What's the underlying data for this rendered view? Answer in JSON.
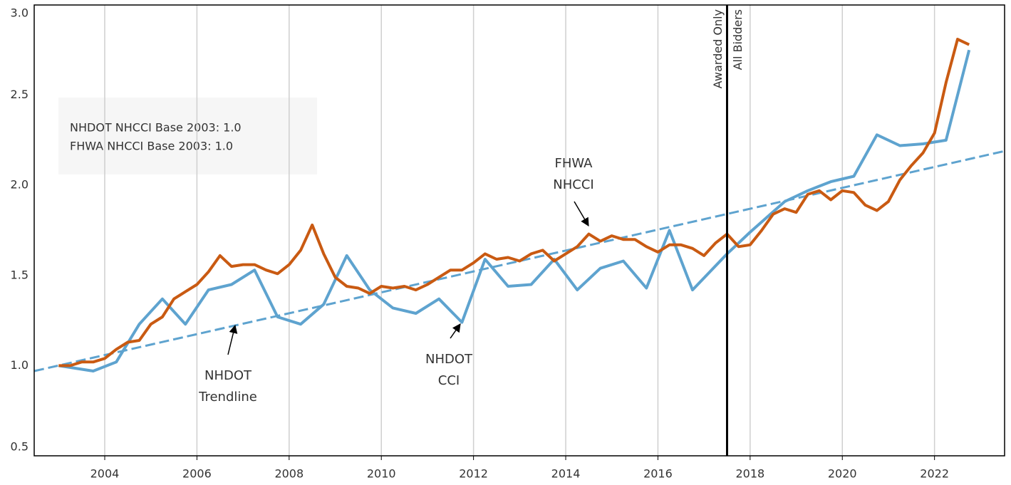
{
  "chart_data": {
    "type": "line",
    "xlim": [
      2002.47,
      2023.52
    ],
    "xticks": [
      2004,
      2006,
      2008,
      2010,
      2012,
      2014,
      2016,
      2018,
      2020,
      2022
    ],
    "ylim": [
      0.5,
      3.0
    ],
    "yticks": [
      {
        "value": 0.5,
        "label": "0.5"
      },
      {
        "value": 1.0,
        "label": "1.0"
      },
      {
        "value": 1.5,
        "label": "1.5"
      },
      {
        "value": 2.0,
        "label": "2.0"
      },
      {
        "value": 2.5,
        "label": "2.5"
      },
      {
        "value": 3.0,
        "label": "3.0"
      }
    ],
    "grid": true,
    "series": [
      {
        "color": "#5ea3cf",
        "dashed": false,
        "x": [
          2003.0,
          2003.75,
          2004.25,
          2004.75,
          2005.25,
          2005.75,
          2006.25,
          2006.75,
          2007.25,
          2007.75,
          2008.25,
          2008.75,
          2009.25,
          2009.75,
          2010.25,
          2010.75,
          2011.25,
          2011.75,
          2012.25,
          2012.75,
          2013.25,
          2013.75,
          2014.25,
          2014.75,
          2015.25,
          2015.75,
          2016.25,
          2016.75,
          2017.5,
          2018.0,
          2018.75,
          2019.25,
          2019.75,
          2020.25,
          2020.75,
          2021.25,
          2021.75,
          2022.25,
          2022.75
        ],
        "values": [
          1.0,
          0.97,
          1.02,
          1.23,
          1.37,
          1.23,
          1.42,
          1.45,
          1.53,
          1.27,
          1.23,
          1.34,
          1.61,
          1.42,
          1.32,
          1.29,
          1.37,
          1.24,
          1.59,
          1.44,
          1.45,
          1.59,
          1.42,
          1.54,
          1.58,
          1.43,
          1.75,
          1.42,
          1.62,
          1.74,
          1.91,
          1.97,
          2.02,
          2.05,
          2.28,
          2.22,
          2.23,
          2.25,
          2.75
        ]
      },
      {
        "color": "#c95a12",
        "dashed": false,
        "x": [
          2003.0,
          2003.25,
          2003.5,
          2003.75,
          2004.0,
          2004.25,
          2004.5,
          2004.75,
          2005.0,
          2005.25,
          2005.5,
          2005.75,
          2006.0,
          2006.25,
          2006.5,
          2006.75,
          2007.0,
          2007.25,
          2007.5,
          2007.75,
          2008.0,
          2008.25,
          2008.5,
          2008.75,
          2009.0,
          2009.25,
          2009.5,
          2009.75,
          2010.0,
          2010.25,
          2010.5,
          2010.75,
          2011.0,
          2011.25,
          2011.5,
          2011.75,
          2012.0,
          2012.25,
          2012.5,
          2012.75,
          2013.0,
          2013.25,
          2013.5,
          2013.75,
          2014.0,
          2014.25,
          2014.5,
          2014.75,
          2015.0,
          2015.25,
          2015.5,
          2015.75,
          2016.0,
          2016.25,
          2016.5,
          2016.75,
          2017.0,
          2017.25,
          2017.5,
          2017.75,
          2018.0,
          2018.25,
          2018.5,
          2018.75,
          2019.0,
          2019.25,
          2019.5,
          2019.75,
          2020.0,
          2020.25,
          2020.5,
          2020.75,
          2021.0,
          2021.25,
          2021.5,
          2021.75,
          2022.0,
          2022.25,
          2022.5,
          2022.75
        ],
        "values": [
          1.0,
          1.0,
          1.02,
          1.02,
          1.04,
          1.09,
          1.13,
          1.14,
          1.23,
          1.27,
          1.37,
          1.41,
          1.45,
          1.52,
          1.61,
          1.55,
          1.56,
          1.56,
          1.53,
          1.51,
          1.56,
          1.64,
          1.78,
          1.62,
          1.49,
          1.44,
          1.43,
          1.4,
          1.44,
          1.43,
          1.44,
          1.42,
          1.45,
          1.49,
          1.53,
          1.53,
          1.57,
          1.62,
          1.59,
          1.6,
          1.58,
          1.62,
          1.64,
          1.58,
          1.62,
          1.66,
          1.73,
          1.69,
          1.72,
          1.7,
          1.7,
          1.66,
          1.63,
          1.67,
          1.67,
          1.65,
          1.61,
          1.68,
          1.73,
          1.66,
          1.67,
          1.75,
          1.84,
          1.87,
          1.85,
          1.95,
          1.97,
          1.92,
          1.97,
          1.96,
          1.89,
          1.86,
          1.91,
          2.03,
          2.11,
          2.18,
          2.29,
          2.57,
          2.81,
          2.78
        ]
      },
      {
        "color": "#5ea3cf",
        "dashed": true,
        "x": [
          2002.47,
          2023.52
        ],
        "values": [
          0.97,
          2.19
        ]
      }
    ],
    "vline": {
      "x": 2017.5,
      "left_label": "Awarded Only",
      "right_label": "All Bidders"
    },
    "note": [
      "NHDOT NHCCI Base 2003: 1.0",
      "FHWA NHCCI Base 2003: 1.0"
    ],
    "annotations": [
      {
        "lines": [
          "FHWA",
          "NHCCI"
        ]
      },
      {
        "lines": [
          "NHDOT",
          "CCI"
        ]
      },
      {
        "lines": [
          "NHDOT",
          "Trendline"
        ]
      }
    ]
  }
}
